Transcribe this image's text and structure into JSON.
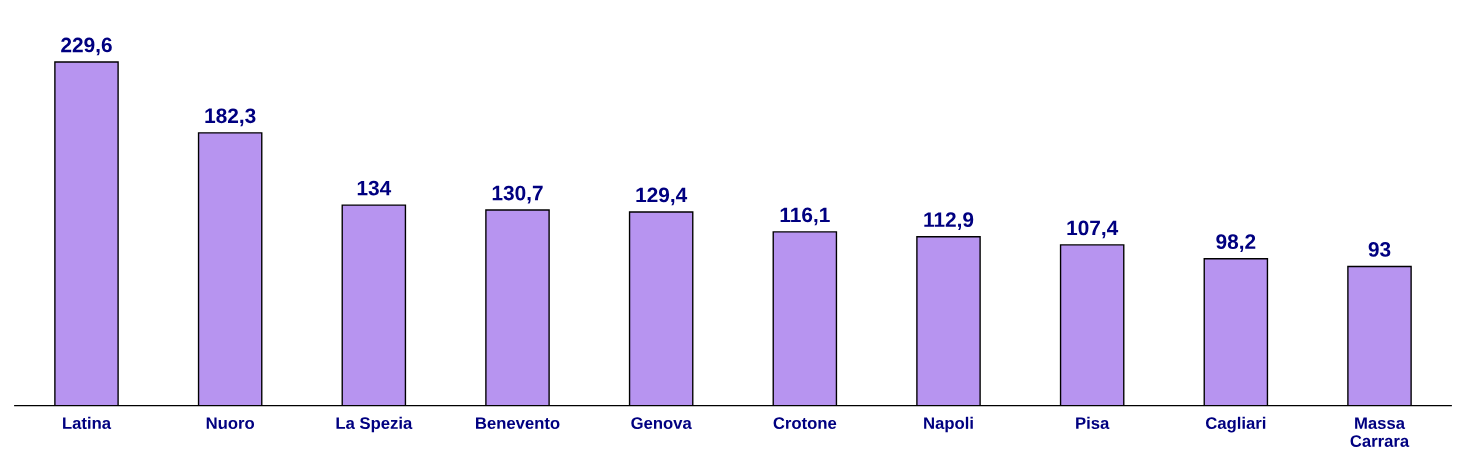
{
  "chart_data": {
    "type": "bar",
    "categories": [
      "Latina",
      "Nuoro",
      "La Spezia",
      "Benevento",
      "Genova",
      "Crotone",
      "Napoli",
      "Pisa",
      "Cagliari",
      "Massa\nCarrara"
    ],
    "values": [
      229.6,
      182.3,
      134,
      130.7,
      129.4,
      116.1,
      112.9,
      107.4,
      98.2,
      93
    ],
    "value_labels": [
      "229,6",
      "182,3",
      "134",
      "130,7",
      "129,4",
      "116,1",
      "112,9",
      "107,4",
      "98,2",
      "93"
    ],
    "color": "#b794f0"
  }
}
